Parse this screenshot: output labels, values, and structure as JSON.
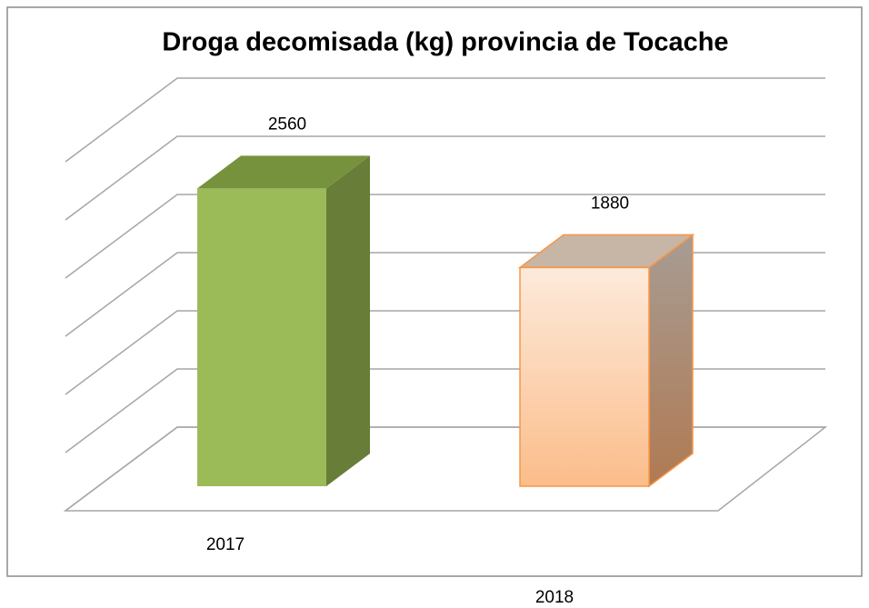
{
  "chart_data": {
    "type": "bar3d",
    "title": "Droga decomisada (kg) provincia de Tocache",
    "categories": [
      "2017",
      "2018"
    ],
    "values": [
      2560,
      1880
    ],
    "colors": [
      "#9bbb59",
      "#fac090"
    ],
    "ylim": [
      0,
      3000
    ],
    "yticks": [
      0,
      500,
      1000,
      1500,
      2000,
      2500,
      3000
    ],
    "grid": true
  }
}
